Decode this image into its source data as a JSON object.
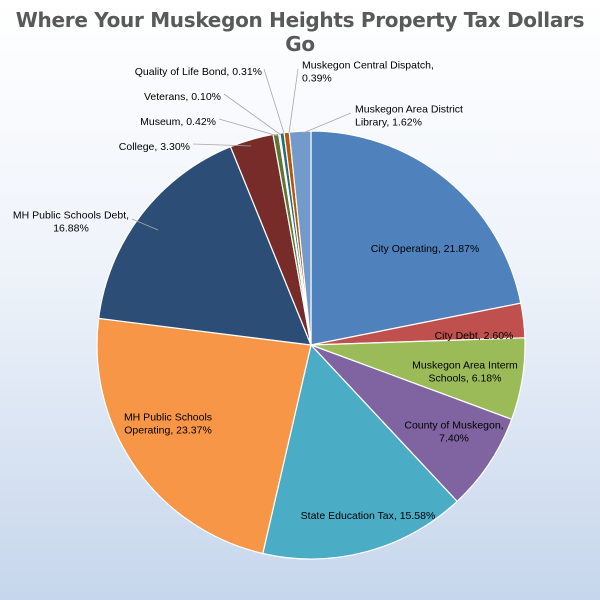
{
  "chart_data": {
    "type": "pie",
    "title": "Where Your Muskegon Heights Property Tax Dollars Go",
    "slices": [
      {
        "name": "City Operating",
        "value": 21.87,
        "label_lines": [
          "City Operating, 21.87%"
        ],
        "color": "#4f81bd"
      },
      {
        "name": "City Debt",
        "value": 2.6,
        "label_lines": [
          "City Debt, 2.60%"
        ],
        "color": "#c0504d"
      },
      {
        "name": "Muskegon Area Interm Schools",
        "value": 6.18,
        "label_lines": [
          "Muskegon Area Interm",
          "Schools, 6.18%"
        ],
        "color": "#9bbb59"
      },
      {
        "name": "County of Muskegon",
        "value": 7.4,
        "label_lines": [
          "County of Muskegon,",
          "7.40%"
        ],
        "color": "#8064a2"
      },
      {
        "name": "State Education Tax",
        "value": 15.58,
        "label_lines": [
          "State Education Tax, 15.58%"
        ],
        "color": "#4bacc6"
      },
      {
        "name": "MH Public Schools Operating",
        "value": 23.37,
        "label_lines": [
          "MH Public Schools",
          "Operating, 23.37%"
        ],
        "color": "#f79646"
      },
      {
        "name": "MH Public Schools Debt",
        "value": 16.88,
        "label_lines": [
          "MH Public Schools Debt,",
          "16.88%"
        ],
        "color": "#2c4d75"
      },
      {
        "name": "College",
        "value": 3.3,
        "label_lines": [
          "College, 3.30%"
        ],
        "color": "#772c2a"
      },
      {
        "name": "Museum",
        "value": 0.42,
        "label_lines": [
          "Museum, 0.42%"
        ],
        "color": "#5f7530"
      },
      {
        "name": "Veterans",
        "value": 0.1,
        "label_lines": [
          "Veterans, 0.10%"
        ],
        "color": "#4d3b62"
      },
      {
        "name": "Quality of Life Bond",
        "value": 0.31,
        "label_lines": [
          "Quality of Life Bond, 0.31%"
        ],
        "color": "#276a7c"
      },
      {
        "name": "Muskegon Central Dispatch",
        "value": 0.39,
        "label_lines": [
          "Muskegon Central Dispatch,",
          "0.39%"
        ],
        "color": "#b65708"
      },
      {
        "name": "Muskegon Area District Library",
        "value": 1.62,
        "label_lines": [
          "Muskegon Area District",
          "Library, 1.62%"
        ],
        "color": "#729aca"
      }
    ]
  }
}
